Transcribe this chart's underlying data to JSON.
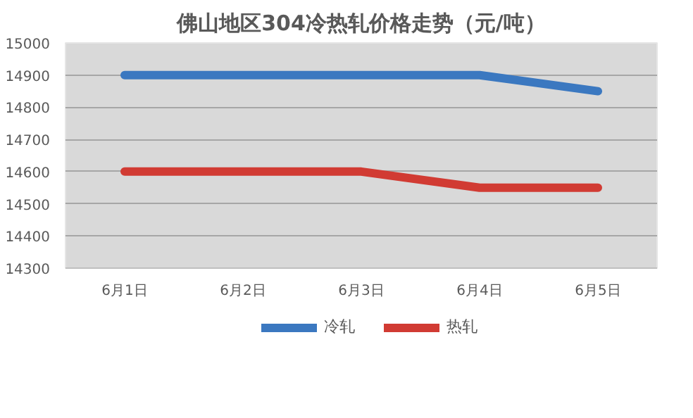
{
  "chart_data": {
    "type": "line",
    "title": "佛山地区304冷热轧价格走势（元/吨）",
    "categories": [
      "6月1日",
      "6月2日",
      "6月3日",
      "6月4日",
      "6月5日"
    ],
    "series": [
      {
        "name": "冷轧",
        "color": "#3b78c0",
        "values": [
          14900,
          14900,
          14900,
          14900,
          14850
        ]
      },
      {
        "name": "热轧",
        "color": "#d13b33",
        "values": [
          14600,
          14600,
          14600,
          14550,
          14550
        ]
      }
    ],
    "ylim": [
      14300,
      15000
    ],
    "yticks": [
      14300,
      14400,
      14500,
      14600,
      14700,
      14800,
      14900,
      15000
    ],
    "grid": "y",
    "legend": "bottom",
    "marker": "none",
    "line_style": "solid"
  }
}
